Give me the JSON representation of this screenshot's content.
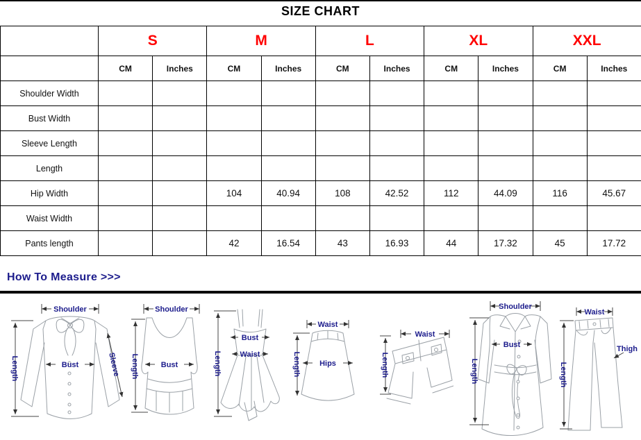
{
  "title": "SIZE CHART",
  "colors": {
    "accent_red": "#ff0000",
    "shade_gray": "#d6dce4",
    "navy_blue": "#1c1c8c"
  },
  "table": {
    "sizes": [
      "S",
      "M",
      "L",
      "XL",
      "XXL"
    ],
    "units": [
      "CM",
      "Inches"
    ],
    "shaded_sizes": [
      "S",
      "L",
      "XXL"
    ],
    "rows": [
      {
        "label": "Shoulder Width",
        "cells": [
          "",
          "",
          "",
          "",
          "",
          "",
          "",
          "",
          "",
          ""
        ]
      },
      {
        "label": "Bust Width",
        "cells": [
          "",
          "",
          "",
          "",
          "",
          "",
          "",
          "",
          "",
          ""
        ]
      },
      {
        "label": "Sleeve Length",
        "cells": [
          "",
          "",
          "",
          "",
          "",
          "",
          "",
          "",
          "",
          ""
        ]
      },
      {
        "label": "Length",
        "cells": [
          "",
          "",
          "",
          "",
          "",
          "",
          "",
          "",
          "",
          ""
        ]
      },
      {
        "label": "Hip Width",
        "cells": [
          "",
          "",
          "104",
          "40.94",
          "108",
          "42.52",
          "112",
          "44.09",
          "116",
          "45.67"
        ]
      },
      {
        "label": "Waist Width",
        "cells": [
          "",
          "",
          "",
          "",
          "",
          "",
          "",
          "",
          "",
          ""
        ]
      },
      {
        "label": "Pants length",
        "cells": [
          "",
          "",
          "42",
          "16.54",
          "43",
          "16.93",
          "44",
          "17.32",
          "45",
          "17.72"
        ]
      }
    ]
  },
  "measure": {
    "heading": "How To Measure >>>",
    "figures": [
      {
        "name": "blouse",
        "labels": {
          "shoulder": "Shoulder",
          "length": "Length",
          "bust": "Bust",
          "sleeve": "Sleeve"
        }
      },
      {
        "name": "tank-top",
        "labels": {
          "shoulder": "Shoulder",
          "length": "Length",
          "bust": "Bust"
        }
      },
      {
        "name": "dress",
        "labels": {
          "length": "Length",
          "bust": "Bust",
          "waist": "Waist"
        }
      },
      {
        "name": "skirt",
        "labels": {
          "waist": "Waist",
          "hips": "Hips",
          "length": "Length"
        }
      },
      {
        "name": "shorts",
        "labels": {
          "waist": "Waist",
          "length": "Length"
        }
      },
      {
        "name": "coat",
        "labels": {
          "shoulder": "Shoulder",
          "bust": "Bust",
          "length": "Length"
        }
      },
      {
        "name": "pants",
        "labels": {
          "waist": "Waist",
          "thigh": "Thigh",
          "length": "Length"
        }
      }
    ]
  }
}
